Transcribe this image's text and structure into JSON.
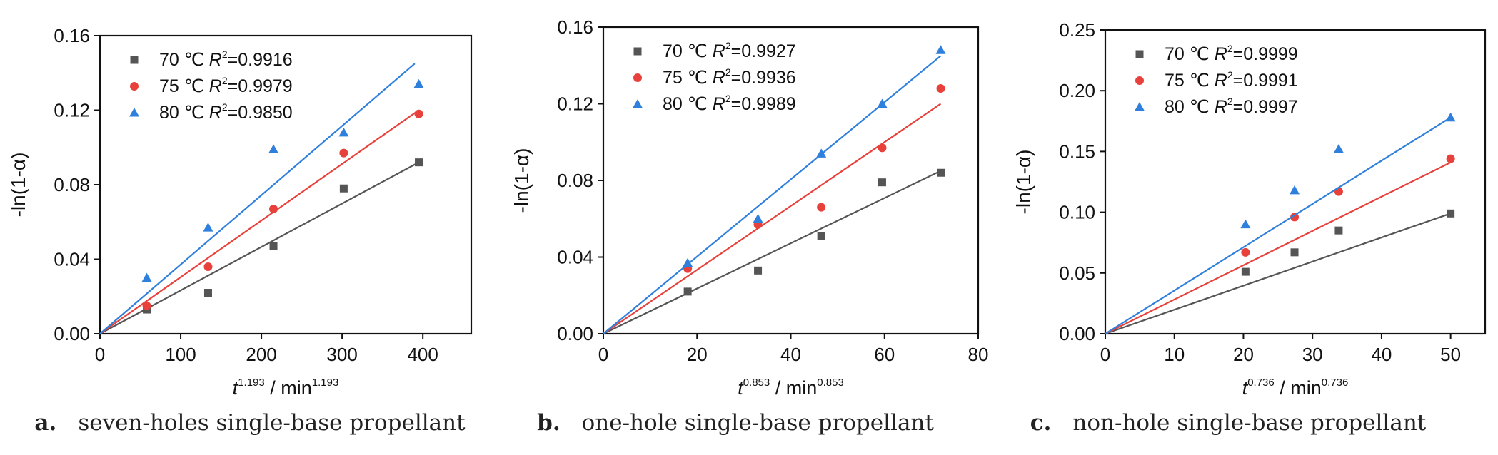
{
  "figure": {
    "panels": [
      {
        "letter": "a.",
        "title": "seven-holes single-base propellant"
      },
      {
        "letter": "b.",
        "title": "one-hole single-base propellant"
      },
      {
        "letter": "c.",
        "title": "non-hole single-base propellant"
      }
    ]
  },
  "chart_data": [
    {
      "type": "scatter",
      "xlabel": "t",
      "xlabel_exp": "1.193",
      "xlabel_unit": " / min",
      "xlabel_unit_exp": "1.193",
      "ylabel": "-ln(1-α)",
      "xlim": [
        0,
        460
      ],
      "ylim": [
        0,
        0.16
      ],
      "xticks": [
        0,
        100,
        200,
        300,
        400
      ],
      "yticks": [
        0.0,
        0.04,
        0.08,
        0.12,
        0.16
      ],
      "ytick_decimals": 2,
      "grid": false,
      "legend_position": "top-left",
      "series": [
        {
          "name": "70 ℃",
          "r2": "R",
          "r2_exp": "2",
          "r2_value": "=0.9916",
          "marker": "square",
          "color": "#555555",
          "x": [
            58,
            134,
            215,
            302,
            395
          ],
          "y": [
            0.013,
            0.022,
            0.047,
            0.078,
            0.092
          ],
          "fit": {
            "x": [
              0,
              395
            ],
            "y": [
              0,
              0.092
            ]
          }
        },
        {
          "name": "75 ℃",
          "r2": "R",
          "r2_exp": "2",
          "r2_value": "=0.9979",
          "marker": "circle",
          "color": "#e8403a",
          "x": [
            58,
            134,
            215,
            302,
            395
          ],
          "y": [
            0.015,
            0.036,
            0.067,
            0.097,
            0.118
          ],
          "fit": {
            "x": [
              0,
              395
            ],
            "y": [
              0,
              0.12
            ]
          }
        },
        {
          "name": "80 ℃",
          "r2": "R",
          "r2_exp": "2",
          "r2_value": "=0.9850",
          "marker": "triangle",
          "color": "#2f7fdc",
          "x": [
            58,
            134,
            215,
            302,
            395
          ],
          "y": [
            0.03,
            0.057,
            0.099,
            0.108,
            0.134
          ],
          "fit": {
            "x": [
              0,
              390
            ],
            "y": [
              0,
              0.145
            ]
          }
        }
      ]
    },
    {
      "type": "scatter",
      "xlabel": "t",
      "xlabel_exp": "0.853",
      "xlabel_unit": " / min",
      "xlabel_unit_exp": "0.853",
      "ylabel": "-ln(1-α)",
      "xlim": [
        0,
        80
      ],
      "ylim": [
        0,
        0.16
      ],
      "xticks": [
        0,
        20,
        40,
        60,
        80
      ],
      "yticks": [
        0.0,
        0.04,
        0.08,
        0.12,
        0.16
      ],
      "ytick_decimals": 2,
      "grid": false,
      "legend_position": "top-left",
      "series": [
        {
          "name": "70 ℃",
          "r2": "R",
          "r2_exp": "2",
          "r2_value": "=0.9927",
          "marker": "square",
          "color": "#555555",
          "x": [
            18,
            33,
            46.5,
            59.5,
            72
          ],
          "y": [
            0.022,
            0.033,
            0.051,
            0.079,
            0.084
          ],
          "fit": {
            "x": [
              0,
              72
            ],
            "y": [
              0,
              0.085
            ]
          }
        },
        {
          "name": "75 ℃",
          "r2": "R",
          "r2_exp": "2",
          "r2_value": "=0.9936",
          "marker": "circle",
          "color": "#e8403a",
          "x": [
            18,
            33,
            46.5,
            59.5,
            72
          ],
          "y": [
            0.034,
            0.057,
            0.066,
            0.097,
            0.128
          ],
          "fit": {
            "x": [
              0,
              72
            ],
            "y": [
              0,
              0.12
            ]
          }
        },
        {
          "name": "80 ℃",
          "r2": "R",
          "r2_exp": "2",
          "r2_value": "=0.9989",
          "marker": "triangle",
          "color": "#2f7fdc",
          "x": [
            18,
            33,
            46.5,
            59.5,
            72
          ],
          "y": [
            0.037,
            0.06,
            0.094,
            0.12,
            0.148
          ],
          "fit": {
            "x": [
              0,
              72
            ],
            "y": [
              0,
              0.145
            ]
          }
        }
      ]
    },
    {
      "type": "scatter",
      "xlabel": "t",
      "xlabel_exp": "0.736",
      "xlabel_unit": " / min",
      "xlabel_unit_exp": "0.736",
      "ylabel": "-ln(1-α)",
      "xlim": [
        0,
        55
      ],
      "ylim": [
        0,
        0.25
      ],
      "xticks": [
        0,
        10,
        20,
        30,
        40,
        50
      ],
      "yticks": [
        0.0,
        0.05,
        0.1,
        0.15,
        0.2,
        0.25
      ],
      "ytick_decimals": 2,
      "grid": false,
      "legend_position": "top-left",
      "series": [
        {
          "name": "70 ℃",
          "r2": "R",
          "r2_exp": "2",
          "r2_value": "=0.9999",
          "marker": "square",
          "color": "#555555",
          "x": [
            20.3,
            27.4,
            33.8,
            50
          ],
          "y": [
            0.051,
            0.067,
            0.085,
            0.099
          ],
          "fit": {
            "x": [
              0,
              50
            ],
            "y": [
              0,
              0.099
            ]
          }
        },
        {
          "name": "75 ℃",
          "r2": "R",
          "r2_exp": "2",
          "r2_value": "=0.9991",
          "marker": "circle",
          "color": "#e8403a",
          "x": [
            20.3,
            27.4,
            33.8,
            50
          ],
          "y": [
            0.067,
            0.096,
            0.117,
            0.144
          ],
          "fit": {
            "x": [
              0,
              50
            ],
            "y": [
              0,
              0.141
            ]
          }
        },
        {
          "name": "80 ℃",
          "r2": "R",
          "r2_exp": "2",
          "r2_value": "=0.9997",
          "marker": "triangle",
          "color": "#2f7fdc",
          "x": [
            20.3,
            27.4,
            33.8,
            50
          ],
          "y": [
            0.09,
            0.118,
            0.152,
            0.178
          ],
          "fit": {
            "x": [
              0,
              50
            ],
            "y": [
              0,
              0.178
            ]
          }
        }
      ]
    }
  ]
}
